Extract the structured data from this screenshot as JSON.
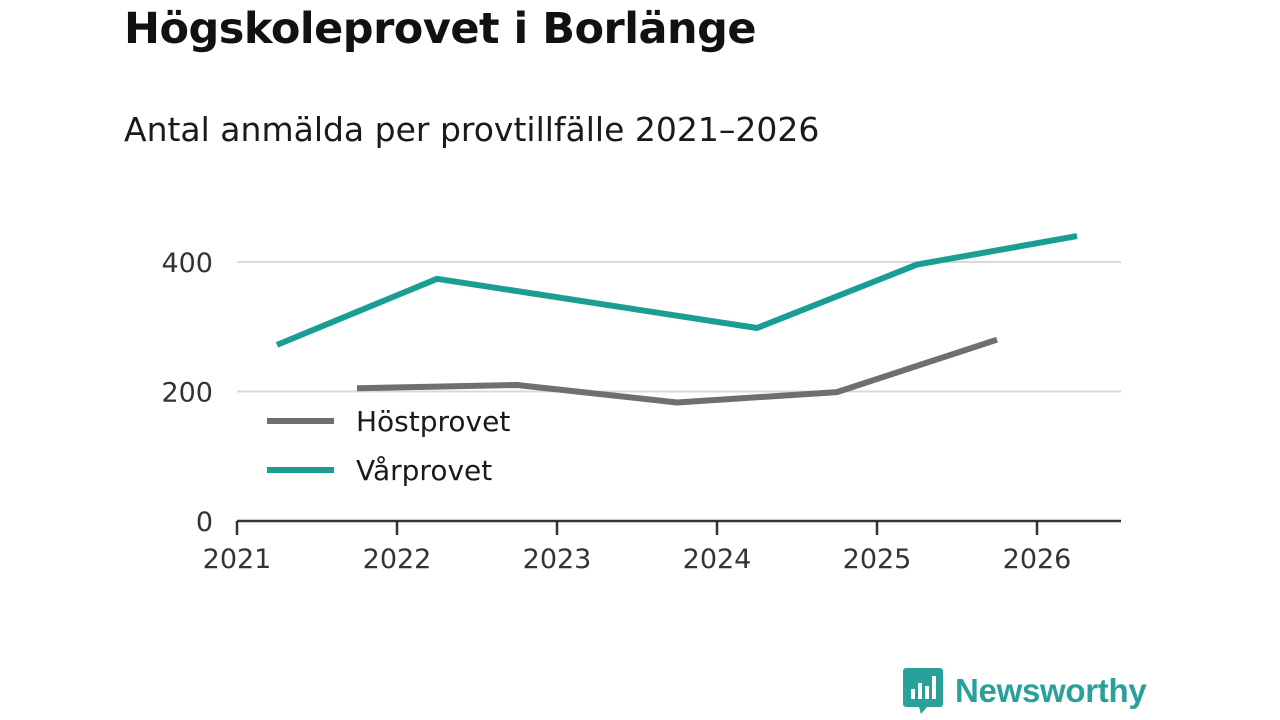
{
  "header": {
    "title": "Högskoleprovet i Borlänge",
    "subtitle": "Antal anmälda per provtillfälle 2021–2026"
  },
  "brand": {
    "name": "Newsworthy",
    "color": "#2aa198"
  },
  "chart_data": {
    "type": "line",
    "title": "Högskoleprovet i Borlänge",
    "subtitle": "Antal anmälda per provtillfälle 2021–2026",
    "xlabel": "",
    "ylabel": "",
    "xlim": [
      2021,
      2026.5
    ],
    "ylim": [
      0,
      460
    ],
    "x_ticks": [
      "2021",
      "2022",
      "2023",
      "2024",
      "2025",
      "2026"
    ],
    "y_ticks": [
      0,
      200,
      400
    ],
    "grid": true,
    "legend_position": "left",
    "series": [
      {
        "name": "Höstprovet",
        "color": "#6e6e73",
        "points": [
          {
            "x": 2021.75,
            "y": 205
          },
          {
            "x": 2022.75,
            "y": 210
          },
          {
            "x": 2023.75,
            "y": 183
          },
          {
            "x": 2024.75,
            "y": 199
          },
          {
            "x": 2025.75,
            "y": 280
          }
        ]
      },
      {
        "name": "Vårprovet",
        "color": "#1a9e93",
        "points": [
          {
            "x": 2021.25,
            "y": 272
          },
          {
            "x": 2022.25,
            "y": 374
          },
          {
            "x": 2024.25,
            "y": 298
          },
          {
            "x": 2025.25,
            "y": 396
          },
          {
            "x": 2026.25,
            "y": 440
          }
        ]
      }
    ]
  }
}
